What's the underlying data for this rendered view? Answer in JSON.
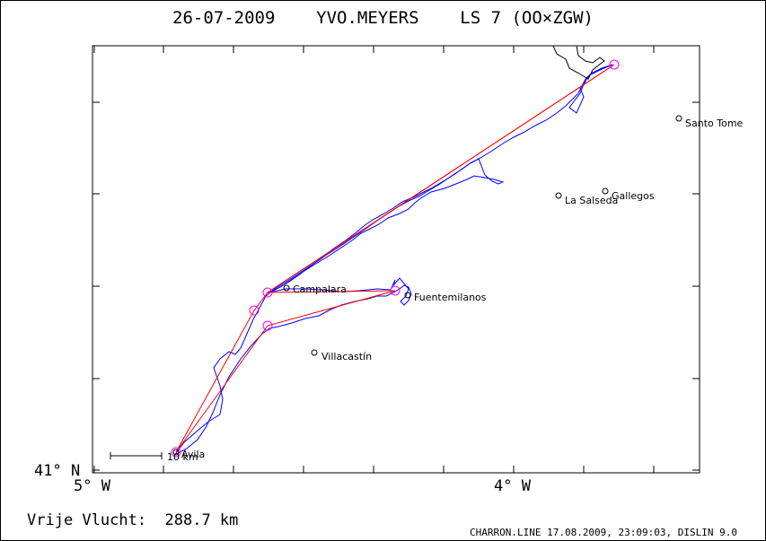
{
  "header": {
    "title": "26-07-2009    YVO.MEYERS    LS 7 (OO×ZGW)"
  },
  "axes": {
    "y_tick_label": "41° N",
    "x_tick_labels": [
      "5° W",
      "4° W"
    ]
  },
  "places": [
    {
      "name": "Avila",
      "icon": "circle-marker-icon"
    },
    {
      "name": "Campalara",
      "icon": "circle-marker-icon"
    },
    {
      "name": "Fuentemilanos",
      "icon": "circle-marker-icon"
    },
    {
      "name": "Villacastín",
      "icon": "circle-marker-icon"
    },
    {
      "name": "La Salseda",
      "icon": "circle-marker-icon"
    },
    {
      "name": "Gallegos",
      "icon": "circle-marker-icon"
    },
    {
      "name": "Santo Tome",
      "icon": "circle-marker-icon"
    }
  ],
  "scale_bar": {
    "label": "10 km"
  },
  "colors": {
    "track": "#0000ff",
    "task_line": "#ff0000",
    "turnpoint": "#ff00ff",
    "border": "#000000"
  },
  "footer": {
    "distance": "Vrije Vlucht:  288.7 km",
    "credit": "CHARRON.LINE 17.08.2009, 23:09:03, DISLIN 9.0"
  }
}
